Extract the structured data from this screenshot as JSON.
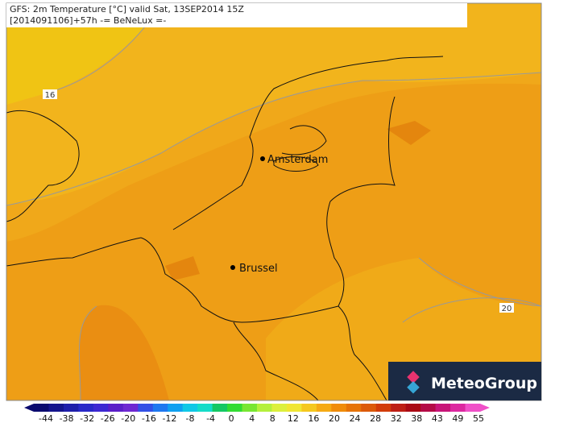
{
  "header": {
    "line1": "GFS: 2m Temperature [°C] valid Sat, 13SEP2014 15Z",
    "line2": "[2014091106]+57h -= BeNeLux =-"
  },
  "cities": [
    {
      "label": "Amsterdam"
    },
    {
      "label": "Brussel"
    }
  ],
  "contours": [
    {
      "label": "16"
    },
    {
      "label": "20"
    }
  ],
  "logo": {
    "text": "MeteoGroup"
  },
  "legend": {
    "ticks": [
      -44,
      -38,
      -32,
      -26,
      -20,
      -16,
      -12,
      -8,
      -4,
      0,
      4,
      8,
      12,
      16,
      20,
      24,
      28,
      32,
      38,
      43,
      49,
      55
    ],
    "colors": [
      "#0a0a6e",
      "#14148c",
      "#1e1eaa",
      "#2828c8",
      "#3c28d2",
      "#5a1ec8",
      "#6e28d2",
      "#3250e6",
      "#1e78f0",
      "#10a0f0",
      "#10c8e6",
      "#14dcc8",
      "#14c864",
      "#32dc32",
      "#78e632",
      "#b4f03c",
      "#dcf03c",
      "#f0e632",
      "#f5c81e",
      "#f5aa14",
      "#f08c0a",
      "#e67308",
      "#dc5a0a",
      "#d23c0a",
      "#be1e14",
      "#aa0a14",
      "#b40a46",
      "#c81478",
      "#dc28a0",
      "#f050c8"
    ]
  }
}
